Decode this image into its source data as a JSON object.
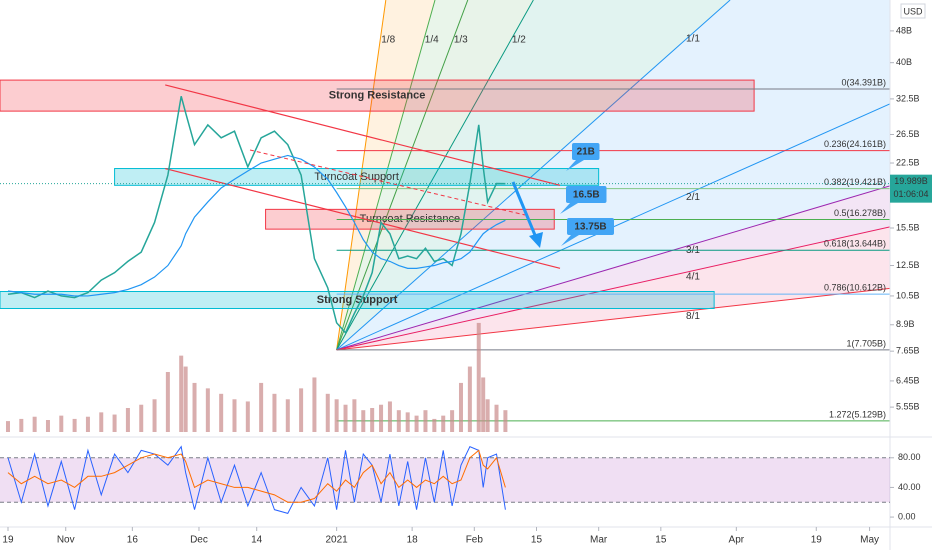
{
  "chart_data": {
    "type": "line",
    "log": true,
    "x": [
      0,
      3,
      6,
      9,
      12,
      15,
      18,
      21,
      24,
      27,
      30,
      33,
      36,
      39,
      40,
      42,
      45,
      48,
      51,
      54,
      57,
      60,
      63,
      66,
      69,
      72,
      74,
      76,
      78,
      80,
      82,
      84,
      86,
      88,
      90,
      92,
      94,
      96,
      98,
      100,
      102,
      104,
      106,
      107,
      108,
      110,
      112
    ],
    "series": [
      {
        "color": "#26a69a",
        "values": [
          10.6,
          10.7,
          10.4,
          10.8,
          10.5,
          10.4,
          10.7,
          11.5,
          12.0,
          12.8,
          13.5,
          16,
          21,
          33,
          30,
          25,
          28,
          26,
          27,
          22,
          26,
          27,
          25,
          21,
          13,
          11,
          9,
          8.5,
          9.5,
          10.5,
          12,
          16,
          15,
          13,
          13.2,
          13,
          13.8,
          12.8,
          13,
          12.5,
          15,
          20,
          28,
          22,
          18,
          20,
          19.99
        ]
      },
      {
        "color": "#2196f3",
        "values": [
          10.8,
          10.7,
          10.6,
          10.6,
          10.6,
          10.5,
          10.5,
          10.6,
          10.7,
          10.9,
          11.2,
          11.7,
          12.5,
          14,
          15,
          16.5,
          18,
          19.5,
          20.5,
          21.5,
          22.5,
          23,
          23.5,
          23,
          22,
          20.5,
          19,
          17.5,
          16,
          14.5,
          13.5,
          13,
          12.8,
          12.5,
          12.3,
          12.3,
          12.4,
          12.5,
          12.7,
          12.8,
          13,
          13.5,
          14.5,
          15,
          15.3,
          15.8,
          16.2
        ]
      }
    ],
    "xlim": [
      -1.8,
      198.6
    ],
    "xticks": [
      {
        "value": 0,
        "label": "19"
      },
      {
        "value": 13,
        "label": "Nov"
      },
      {
        "value": 28,
        "label": "16"
      },
      {
        "value": 43,
        "label": "Dec"
      },
      {
        "value": 56,
        "label": "14"
      },
      {
        "value": 74,
        "label": "2021"
      },
      {
        "value": 91,
        "label": "18"
      },
      {
        "value": 105,
        "label": "Feb"
      },
      {
        "value": 119,
        "label": "15"
      },
      {
        "value": 133,
        "label": "Mar"
      },
      {
        "value": 147,
        "label": "15"
      },
      {
        "value": 164,
        "label": "Apr"
      },
      {
        "value": 182,
        "label": "19"
      },
      {
        "value": 194,
        "label": "May"
      }
    ],
    "ylim": [
      4.73,
      57.3
    ],
    "yticks": [
      {
        "value": 5.55,
        "label": "5.55B"
      },
      {
        "value": 6.45,
        "label": "6.45B"
      },
      {
        "value": 7.65,
        "label": "7.65B"
      },
      {
        "value": 8.9,
        "label": "8.9B"
      },
      {
        "value": 10.5,
        "label": "10.5B"
      },
      {
        "value": 12.5,
        "label": "12.5B"
      },
      {
        "value": 15.5,
        "label": "15.5B"
      },
      {
        "value": 22.5,
        "label": "22.5B"
      },
      {
        "value": 26.5,
        "label": "26.5B"
      },
      {
        "value": 32.5,
        "label": "32.5B"
      },
      {
        "value": 40,
        "label": "40B"
      },
      {
        "value": 48,
        "label": "48B"
      }
    ],
    "currency": "USD",
    "last_price": {
      "value": 19.989,
      "label": "19.989B"
    },
    "countdown": "01:06:04",
    "volume": {
      "color": "#c98a8a",
      "vlim": [
        0,
        110
      ],
      "values": [
        10,
        12,
        14,
        11,
        15,
        12,
        14,
        18,
        16,
        22,
        25,
        30,
        55,
        70,
        60,
        45,
        40,
        35,
        30,
        28,
        45,
        35,
        30,
        40,
        50,
        35,
        30,
        25,
        30,
        20,
        22,
        25,
        28,
        20,
        18,
        15,
        20,
        12,
        15,
        20,
        45,
        60,
        100,
        50,
        30,
        25,
        20
      ]
    },
    "oscillator": {
      "ylim": [
        -10.7,
        104
      ],
      "yticks": [
        {
          "value": 0,
          "label": "0.00"
        },
        {
          "value": 40,
          "label": "40.00"
        },
        {
          "value": 80,
          "label": "80.00"
        }
      ],
      "bands": [
        20,
        80
      ],
      "series": [
        {
          "color": "#2962ff",
          "values": [
            80,
            20,
            85,
            15,
            75,
            10,
            90,
            30,
            85,
            60,
            90,
            85,
            70,
            95,
            60,
            10,
            80,
            20,
            70,
            15,
            60,
            10,
            5,
            40,
            15,
            80,
            10,
            90,
            20,
            85,
            70,
            20,
            85,
            15,
            75,
            10,
            80,
            20,
            90,
            15,
            70,
            95,
            90,
            40,
            80,
            85,
            10
          ]
        },
        {
          "color": "#ff6d00",
          "values": [
            60,
            45,
            55,
            45,
            50,
            40,
            55,
            55,
            60,
            70,
            80,
            85,
            80,
            85,
            75,
            40,
            50,
            45,
            40,
            40,
            35,
            30,
            20,
            20,
            25,
            45,
            35,
            50,
            40,
            60,
            70,
            45,
            60,
            40,
            50,
            40,
            50,
            45,
            55,
            45,
            50,
            80,
            90,
            70,
            65,
            80,
            40
          ]
        }
      ]
    },
    "fib": {
      "start": 74,
      "levels": [
        {
          "value": 34.391,
          "label": "0(34.391B)",
          "color": "#787b86"
        },
        {
          "value": 24.161,
          "label": "0.236(24.161B)",
          "color": "#f23645"
        },
        {
          "value": 19.421,
          "label": "0.382(19.421B)",
          "color": "#81c784"
        },
        {
          "value": 16.278,
          "label": "0.5(16.278B)",
          "color": "#4caf50"
        },
        {
          "value": 13.644,
          "label": "0.618(13.644B)",
          "color": "#089981"
        },
        {
          "value": 10.612,
          "label": "0.786(10.612B)",
          "color": "#64b5f6"
        },
        {
          "value": 7.705,
          "label": "1(7.705B)",
          "color": "#787b86"
        },
        {
          "value": 5.129,
          "label": "1.272(5.129B)",
          "color": "#4caf50"
        }
      ]
    },
    "zones": [
      {
        "label": "Strong Resistance",
        "x": [
          -1.8,
          168
        ],
        "y": [
          30.3,
          36.2
        ],
        "color": "#f23645"
      },
      {
        "label": "Turncoat Support",
        "x": [
          24,
          133
        ],
        "y": [
          19.8,
          21.8
        ],
        "color": "#00bcd4"
      },
      {
        "label": "Turncoat Resistance",
        "x": [
          58,
          123
        ],
        "y": [
          15.4,
          17.25
        ],
        "color": "#f23645"
      },
      {
        "label": "Strong Support",
        "x": [
          -1.8,
          159
        ],
        "y": [
          9.77,
          10.77
        ],
        "color": "#00bcd4"
      }
    ],
    "fan": {
      "origin": [
        74,
        7.705
      ],
      "unit": [
        162.6,
        57.3
      ],
      "rays": [
        {
          "label": "1/8",
          "ratio": 0.125,
          "color": "#ff9800"
        },
        {
          "label": "1/4",
          "ratio": 0.25,
          "color": "#4caf50"
        },
        {
          "label": "1/3",
          "ratio": 0.3333,
          "color": "#43a047"
        },
        {
          "label": "1/2",
          "ratio": 0.5,
          "color": "#089981"
        },
        {
          "label": "1/1",
          "ratio": 1,
          "color": "#2196f3"
        },
        {
          "label": "2/1",
          "ratio": 2,
          "color": "#2196f3"
        },
        {
          "label": "3/1",
          "ratio": 3,
          "color": "#9c27b0"
        },
        {
          "label": "4/1",
          "ratio": 4,
          "color": "#e91e63"
        },
        {
          "label": "8/1",
          "ratio": 8,
          "color": "#f23645"
        }
      ]
    },
    "channel": [
      {
        "from": [
          35.4,
          35.2
        ],
        "to": [
          124.3,
          19.8
        ],
        "color": "#f23645"
      },
      {
        "from": [
          35.4,
          21.8
        ],
        "to": [
          124.3,
          12.3
        ],
        "color": "#f23645"
      }
    ],
    "callouts": [
      "21B",
      "16.5B",
      "13.75B"
    ]
  }
}
